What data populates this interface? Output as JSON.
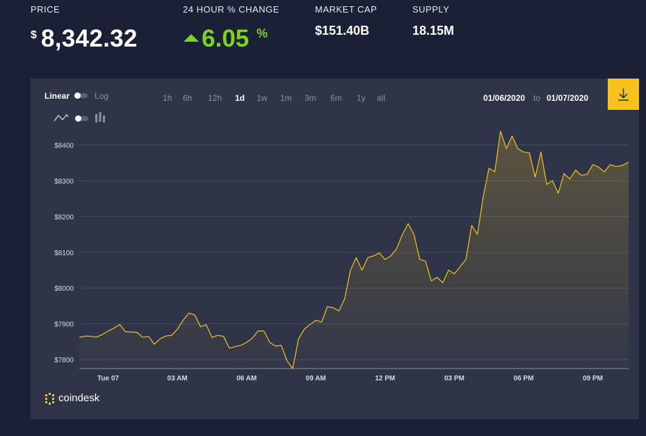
{
  "header": {
    "price_label": "PRICE",
    "price_currency": "$",
    "price_value": "8,342.32",
    "change_label": "24 HOUR % CHANGE",
    "change_value": "6.05",
    "change_unit": "%",
    "market_cap_label": "MARKET CAP",
    "market_cap_value": "$151.40B",
    "supply_label": "SUPPLY",
    "supply_value": "18.15M",
    "change_color": "#7ed321"
  },
  "controls": {
    "scale_linear": "Linear",
    "scale_log": "Log",
    "ranges": [
      "1h",
      "6h",
      "12h",
      "1d",
      "1w",
      "1m",
      "3m",
      "6m",
      "1y",
      "all"
    ],
    "active_range": "1d",
    "date_from": "01/06/2020",
    "date_to_word": "to",
    "date_to": "01/07/2020",
    "download_icon": "download-icon",
    "accent": "#f7c31b"
  },
  "brand": {
    "name": "coindesk"
  },
  "chart_data": {
    "type": "area",
    "x_ticks": [
      "Tue 07",
      "03 AM",
      "06 AM",
      "09 AM",
      "12 PM",
      "03 PM",
      "06 PM",
      "09 PM"
    ],
    "y_ticks": [
      "$7800",
      "$7900",
      "$8000",
      "$8100",
      "$8200",
      "$8300",
      "$8400"
    ],
    "ylim": [
      7775,
      8430
    ],
    "xlim": [
      -1.25,
      22.55
    ],
    "grid": true,
    "line_color": "#f7c31b",
    "x": [
      -1.25,
      -1.0,
      -0.75,
      -0.5,
      -0.25,
      0,
      0.25,
      0.5,
      0.75,
      1.0,
      1.25,
      1.5,
      1.75,
      2.0,
      2.25,
      2.5,
      2.75,
      3.0,
      3.25,
      3.5,
      3.75,
      4.0,
      4.25,
      4.5,
      4.75,
      5.0,
      5.25,
      5.5,
      5.75,
      6.0,
      6.25,
      6.5,
      6.75,
      7.0,
      7.25,
      7.5,
      7.75,
      8.0,
      8.25,
      8.5,
      8.75,
      9.0,
      9.25,
      9.5,
      9.75,
      10.0,
      10.25,
      10.5,
      10.75,
      11.0,
      11.25,
      11.5,
      11.75,
      12.0,
      12.25,
      12.5,
      12.75,
      13.0,
      13.25,
      13.5,
      13.75,
      14.0,
      14.25,
      14.5,
      14.75,
      15.0,
      15.25,
      15.5,
      15.75,
      16.0,
      16.25,
      16.5,
      16.75,
      17.0,
      17.25,
      17.5,
      17.75,
      18.0,
      18.25,
      18.5,
      18.75,
      19.0,
      19.25,
      19.5,
      19.75,
      20.0,
      20.25,
      20.5,
      20.75,
      21.0,
      21.25,
      21.5,
      21.75,
      22.0,
      22.25,
      22.55
    ],
    "y": [
      7862,
      7866,
      7865,
      7863,
      7870,
      7880,
      7888,
      7898,
      7878,
      7877,
      7876,
      7862,
      7865,
      7843,
      7858,
      7866,
      7868,
      7885,
      7910,
      7930,
      7925,
      7892,
      7897,
      7862,
      7868,
      7865,
      7832,
      7836,
      7840,
      7848,
      7860,
      7880,
      7880,
      7848,
      7838,
      7840,
      7797,
      7775,
      7858,
      7885,
      7898,
      7910,
      7905,
      7948,
      7945,
      7936,
      7970,
      8050,
      8085,
      8050,
      8085,
      8090,
      8098,
      8080,
      8090,
      8110,
      8150,
      8180,
      8150,
      8080,
      8075,
      8020,
      8030,
      8015,
      8050,
      8040,
      8060,
      8080,
      8175,
      8150,
      8255,
      8335,
      8325,
      8438,
      8390,
      8425,
      8390,
      8380,
      8378,
      8310,
      8380,
      8290,
      8300,
      8265,
      8320,
      8305,
      8330,
      8315,
      8318,
      8345,
      8338,
      8325,
      8345,
      8340,
      8342,
      8352
    ]
  }
}
